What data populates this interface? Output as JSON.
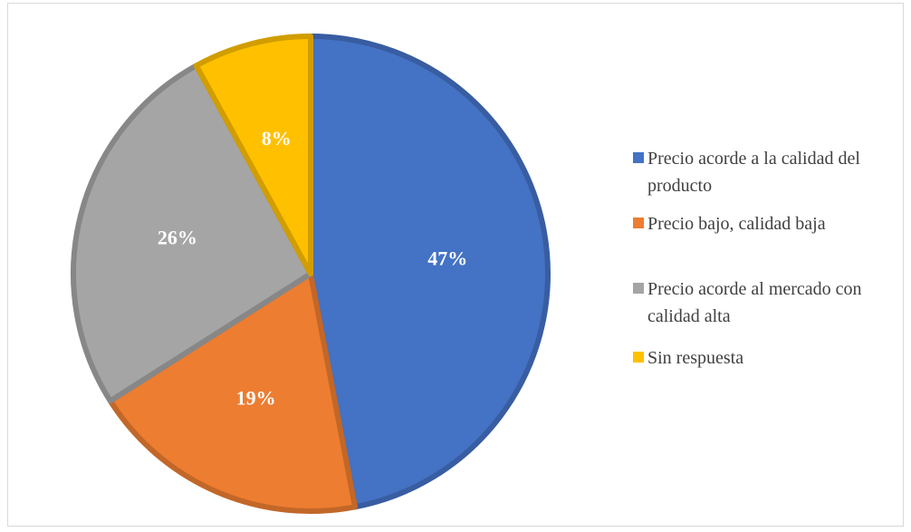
{
  "chart_data": {
    "type": "pie",
    "title": "",
    "slices": [
      {
        "label": "Precio acorde a la calidad del producto",
        "value": 47,
        "display": "47%",
        "color": "#4472C4"
      },
      {
        "label": "Precio bajo, calidad baja",
        "value": 19,
        "display": "19%",
        "color": "#ED7D31"
      },
      {
        "label": "Precio acorde al mercado con calidad alta",
        "value": 26,
        "display": "26%",
        "color": "#A5A5A5"
      },
      {
        "label": "Sin respuesta",
        "value": 8,
        "display": "8%",
        "color": "#FFC000"
      }
    ],
    "legend_position": "right"
  }
}
